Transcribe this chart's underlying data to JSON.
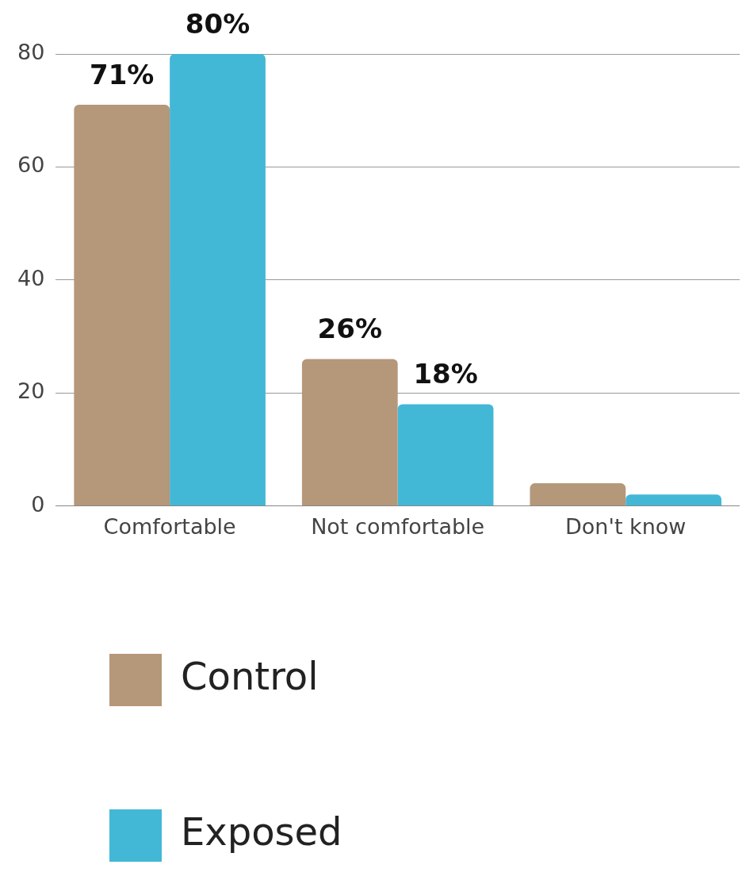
{
  "chart_data": {
    "type": "bar",
    "categories": [
      "Comfortable",
      "Not comfortable",
      "Don't know"
    ],
    "series": [
      {
        "name": "Control",
        "color": "#b5977a",
        "values": [
          71,
          26,
          4
        ],
        "value_labels": [
          "71%",
          "26%",
          null
        ]
      },
      {
        "name": "Exposed",
        "color": "#42b8d6",
        "values": [
          80,
          18,
          2
        ],
        "value_labels": [
          "80%",
          "18%",
          null
        ]
      }
    ],
    "ylim": [
      0,
      80
    ],
    "yticks": [
      0,
      20,
      40,
      60,
      80
    ],
    "grid": "y",
    "legend": "bottom"
  }
}
